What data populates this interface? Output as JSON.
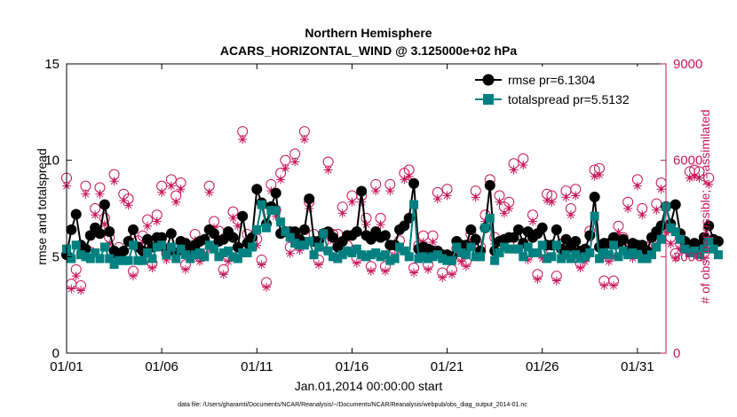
{
  "chart_data": {
    "type": "line",
    "title": "Northern Hemisphere",
    "subtitle": "ACARS_HORIZONTAL_WIND @ 3.125000e+02 hPa",
    "xlabel": "Jan.01,2014 00:00:00 start",
    "ylabel": "rmse and totalspread",
    "ylabel_right": "# of obs: o=possible; ×=assimilated",
    "xlim": [
      0,
      31.5
    ],
    "ylim": [
      0,
      15
    ],
    "ylim_right": [
      0,
      9000
    ],
    "x_ticks": [
      0,
      5,
      10,
      15,
      20,
      25,
      30
    ],
    "x_tick_labels": [
      "01/01",
      "01/06",
      "01/11",
      "01/16",
      "01/21",
      "01/26",
      "01/31"
    ],
    "y_ticks": [
      0,
      5,
      10,
      15
    ],
    "y_tick_labels": [
      "0",
      "5",
      "10",
      "15"
    ],
    "y_ticks_right": [
      0,
      3000,
      6000,
      9000
    ],
    "y_tick_labels_right": [
      "0",
      "3000",
      "6000",
      "9000"
    ],
    "footnote": "data file: /Users/gharamti/Documents/NCAR/Reanalysis/~/Documents/NCAR/Reanalysis/webpub/obs_diag_output_2014-01.nc",
    "series": [
      {
        "name": "rmse pr=6.1304",
        "color": "#000000",
        "marker": "filled-circle",
        "values": [
          5.1,
          6.4,
          7.2,
          5.6,
          5.4,
          6.1,
          6.5,
          6.2,
          7.7,
          6.3,
          5.3,
          5.0,
          5.3,
          5.8,
          6.4,
          5.5,
          5.3,
          5.9,
          5.5,
          6.0,
          6.0,
          5.4,
          6.2,
          5.2,
          5.8,
          5.7,
          5.3,
          5.6,
          5.8,
          5.9,
          6.4,
          6.2,
          5.8,
          5.9,
          6.3,
          6.0,
          5.5,
          7.1,
          5.7,
          6.0,
          8.5,
          7.8,
          6.7,
          7.6,
          8.3,
          6.2,
          6.3,
          6.3,
          6.3,
          5.9,
          6.4,
          8.0,
          5.8,
          5.8,
          6.2,
          6.3,
          6.0,
          5.5,
          5.8,
          6.1,
          6.1,
          6.3,
          8.4,
          6.1,
          5.9,
          6.3,
          6.0,
          6.1,
          5.6,
          5.6,
          6.4,
          6.6,
          7.0,
          8.8,
          5.4,
          5.5,
          5.4,
          5.3,
          5.3,
          5.1,
          5.1,
          5.0,
          5.8,
          5.6,
          5.6,
          6.4,
          5.9,
          5.3,
          6.5,
          8.7,
          5.3,
          5.8,
          5.9,
          6.0,
          6.0,
          6.4,
          5.7,
          6.3,
          6.0,
          6.2,
          6.5,
          5.6,
          5.6,
          6.4,
          5.4,
          5.9,
          5.5,
          5.8,
          5.3,
          5.4,
          6.1,
          8.1,
          5.5,
          5.7,
          5.7,
          6.0,
          5.7,
          5.9,
          5.3,
          5.7,
          5.6,
          5.6,
          5.3,
          6.0,
          6.3,
          6.6,
          7.6,
          6.7,
          7.7,
          6.2,
          5.8,
          5.6,
          5.7,
          5.6,
          6.0,
          6.6,
          5.9,
          5.8
        ]
      },
      {
        "name": "totalspread pr=5.5132",
        "color": "#008080",
        "marker": "filled-square",
        "values": [
          5.4,
          4.9,
          5.6,
          5.1,
          5.0,
          4.9,
          5.2,
          4.9,
          5.5,
          4.9,
          4.6,
          4.8,
          4.8,
          4.8,
          5.6,
          4.8,
          4.8,
          5.2,
          4.9,
          5.5,
          5.6,
          5.1,
          5.5,
          4.9,
          5.4,
          5.1,
          4.9,
          5.1,
          5.2,
          5.0,
          5.6,
          5.4,
          5.0,
          5.2,
          5.3,
          5.0,
          4.9,
          5.2,
          5.2,
          5.5,
          6.4,
          7.7,
          6.5,
          7.4,
          7.4,
          6.8,
          6.3,
          6.0,
          5.7,
          5.6,
          5.6,
          5.8,
          5.1,
          5.5,
          6.2,
          5.3,
          5.0,
          4.9,
          5.1,
          5.3,
          5.2,
          5.4,
          5.1,
          5.0,
          5.1,
          5.2,
          5.0,
          5.1,
          4.8,
          4.9,
          5.5,
          5.3,
          5.0,
          7.7,
          4.9,
          5.0,
          4.9,
          5.0,
          5.1,
          4.9,
          4.8,
          4.8,
          5.5,
          5.2,
          5.1,
          5.5,
          5.0,
          5.0,
          6.5,
          7.0,
          4.8,
          5.2,
          5.5,
          5.4,
          5.4,
          5.4,
          5.0,
          5.5,
          5.2,
          5.2,
          5.6,
          4.9,
          5.0,
          5.6,
          4.9,
          5.1,
          4.9,
          5.1,
          4.9,
          5.0,
          5.2,
          7.1,
          4.9,
          5.2,
          5.1,
          5.6,
          5.0,
          5.3,
          5.1,
          5.2,
          5.1,
          4.9,
          4.9,
          5.1,
          5.5,
          5.9,
          7.6,
          6.5,
          6.3,
          5.9,
          5.4,
          5.2,
          5.3,
          5.1,
          5.4,
          5.8,
          5.4,
          5.1
        ]
      },
      {
        "name": "# obs possible",
        "color": "#c8155a",
        "marker": "open-circle",
        "axis": "right",
        "values": [
          5450,
          2150,
          2600,
          2100,
          5200,
          3150,
          4500,
          5150,
          4200,
          3600,
          5560,
          3290,
          4950,
          4800,
          2550,
          3500,
          3650,
          4150,
          2800,
          4300,
          5200,
          3100,
          5400,
          4900,
          5300,
          2750,
          3100,
          3700,
          3000,
          3250,
          5200,
          4100,
          3800,
          2600,
          3000,
          4400,
          4150,
          6900,
          3700,
          3500,
          3550,
          2900,
          2200,
          5250,
          4450,
          5600,
          6000,
          3300,
          6200,
          3400,
          6900,
          4700,
          3700,
          2900,
          3450,
          5950,
          3700,
          3700,
          4550,
          3350,
          4900,
          2950,
          4900,
          4200,
          2700,
          5250,
          4200,
          2700,
          5250,
          3200,
          3500,
          5600,
          5700,
          2650,
          3350,
          3650,
          2750,
          3650,
          5000,
          2500,
          5100,
          2600,
          3250,
          3000,
          2850,
          3700,
          5050,
          3300,
          4300,
          5400,
          3600,
          4900,
          4550,
          4700,
          5900,
          3400,
          6050,
          3050,
          4300,
          2450,
          3100,
          4950,
          4900,
          2400,
          3400,
          5050,
          4500,
          5100,
          2800,
          3000,
          3800,
          5700,
          5750,
          2250,
          3000,
          2250,
          3950,
          3600,
          4700,
          3100,
          5400,
          4500,
          3300,
          3400,
          4650,
          5300,
          3950,
          3600,
          3100,
          3400,
          3400,
          5650,
          5700,
          5650,
          3100,
          5450
        ]
      },
      {
        "name": "# obs assimilated",
        "color": "#c8155a",
        "marker": "x-star",
        "axis": "right",
        "values": [
          5200,
          2000,
          2400,
          1950,
          4950,
          2950,
          4300,
          4950,
          4000,
          3400,
          5350,
          3100,
          4750,
          4600,
          2400,
          3300,
          3450,
          3950,
          2650,
          4100,
          5000,
          2900,
          5200,
          4700,
          5100,
          2600,
          2950,
          3500,
          2850,
          3100,
          5000,
          3900,
          3600,
          2450,
          2850,
          4200,
          3950,
          6650,
          3500,
          3300,
          3350,
          2750,
          2050,
          5050,
          4250,
          5400,
          5750,
          3100,
          5950,
          3200,
          6650,
          4500,
          3500,
          2750,
          3250,
          5700,
          3500,
          3500,
          4350,
          3200,
          4700,
          2800,
          4700,
          4000,
          2550,
          5050,
          4000,
          2550,
          5050,
          3050,
          3300,
          5400,
          5500,
          2500,
          3200,
          3450,
          2600,
          3450,
          4800,
          2350,
          4900,
          2450,
          3100,
          2850,
          2700,
          3500,
          4850,
          3100,
          4100,
          5200,
          3400,
          4700,
          4350,
          4500,
          5700,
          3250,
          5850,
          2900,
          4100,
          2300,
          2950,
          4750,
          4700,
          2250,
          3250,
          4850,
          4300,
          4900,
          2650,
          2850,
          3600,
          5500,
          5550,
          2100,
          2850,
          2100,
          3750,
          3400,
          4500,
          2950,
          5200,
          4300,
          3100,
          3250,
          4450,
          5100,
          3750,
          3400,
          2950,
          3250,
          3250,
          5450,
          5500,
          5450,
          2950,
          5250
        ]
      }
    ],
    "legend": [
      "rmse pr=6.1304",
      "totalspread pr=5.5132"
    ],
    "legend_position": "top-right",
    "grid": false
  }
}
